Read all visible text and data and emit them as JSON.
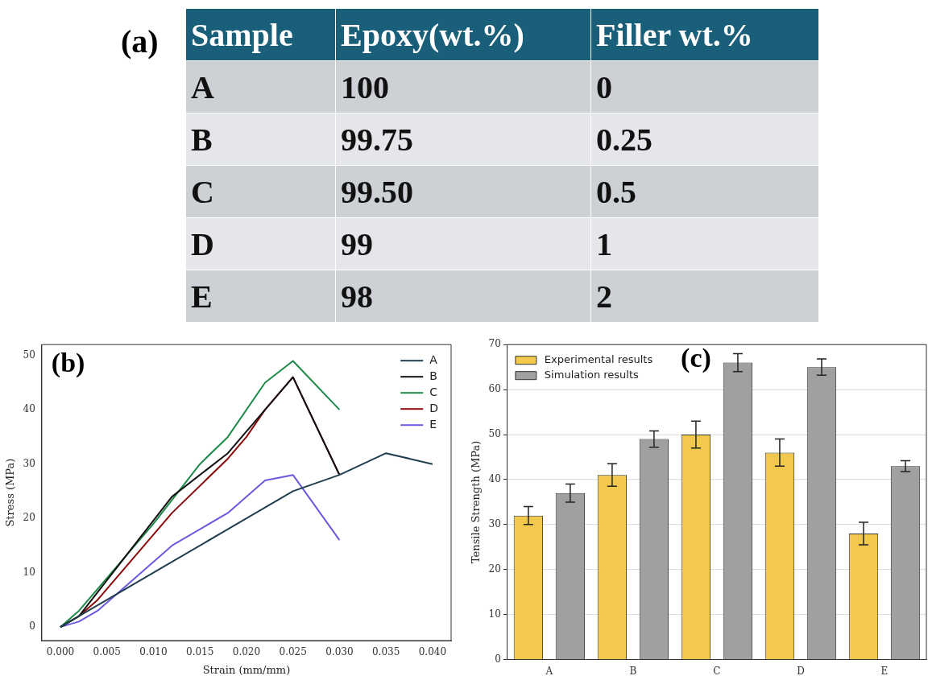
{
  "chart_data": [
    {
      "type": "other",
      "title": "(a)",
      "annotations": [
        "Sample",
        "Epoxy(wt.%)",
        "Filler wt.%",
        "A",
        "100",
        "0",
        "B",
        "99.75",
        "0.25",
        "C",
        "99.50",
        "0.5",
        "D",
        "99",
        "1",
        "E",
        "98",
        "2"
      ]
    },
    {
      "type": "line",
      "title": "(b)",
      "xlabel": "Strain (mm/mm)",
      "ylabel": "Stress (MPa)",
      "legend": "top right",
      "xlim": [
        -0.002,
        0.042
      ],
      "ylim": [
        -2.5,
        52
      ],
      "xticks": [
        {
          "value": 0,
          "label": "0.000"
        },
        {
          "value": 0.005,
          "label": "0.005"
        },
        {
          "value": 0.01,
          "label": "0.010"
        },
        {
          "value": 0.015,
          "label": "0.015"
        },
        {
          "value": 0.02,
          "label": "0.020"
        },
        {
          "value": 0.025,
          "label": "0.025"
        },
        {
          "value": 0.03,
          "label": "0.030"
        },
        {
          "value": 0.035,
          "label": "0.035"
        },
        {
          "value": 0.04,
          "label": "0.040"
        }
      ],
      "yticks": [
        0,
        10,
        20,
        30,
        40,
        50
      ],
      "series": [
        {
          "name": "A",
          "color": "#1f3f4f",
          "x": [
            0,
            0.004,
            0.012,
            0.018,
            0.022,
            0.025,
            0.03,
            0.035,
            0.04
          ],
          "values": [
            0,
            4,
            12,
            18,
            22,
            25,
            28,
            32,
            30
          ]
        },
        {
          "name": "B",
          "color": "#111111",
          "x": [
            0,
            0.002,
            0.012,
            0.018,
            0.022,
            0.025,
            0.03
          ],
          "values": [
            0,
            2,
            24,
            32,
            40,
            46,
            28
          ]
        },
        {
          "name": "C",
          "color": "#1e8a4a",
          "x": [
            0,
            0.002,
            0.01,
            0.015,
            0.018,
            0.022,
            0.025,
            0.03
          ],
          "values": [
            0,
            3,
            19,
            30,
            35,
            45,
            49,
            40
          ]
        },
        {
          "name": "D",
          "color": "#8b0a0a",
          "x": [
            0,
            0.002,
            0.004,
            0.012,
            0.018,
            0.02,
            0.022,
            0.025,
            0.03
          ],
          "values": [
            0,
            2,
            5,
            21,
            31,
            35,
            40,
            46,
            28
          ]
        },
        {
          "name": "E",
          "color": "#6a5ae0",
          "x": [
            0,
            0.002,
            0.004,
            0.012,
            0.018,
            0.022,
            0.025,
            0.03
          ],
          "values": [
            0,
            1,
            3,
            15,
            21,
            27,
            28,
            16
          ]
        }
      ]
    },
    {
      "type": "bar",
      "title": "(c)",
      "ylabel": "Tensile Strength (MPa)",
      "legend": "top left",
      "grid": "y",
      "categories": [
        "A",
        "B",
        "C",
        "D",
        "E"
      ],
      "ylim": [
        0,
        70
      ],
      "yticks": [
        0,
        10,
        20,
        30,
        40,
        50,
        60,
        70
      ],
      "series": [
        {
          "name": "Experimental results",
          "color": "#f2c94c",
          "values": [
            32,
            41,
            50,
            46,
            28
          ],
          "errors": [
            2,
            2.5,
            3,
            3,
            2.5
          ]
        },
        {
          "name": "Simulation results",
          "color": "#a0a0a0",
          "values": [
            37,
            49,
            66,
            65,
            43
          ],
          "errors": [
            2,
            1.8,
            2,
            1.8,
            1.2
          ]
        }
      ]
    }
  ]
}
